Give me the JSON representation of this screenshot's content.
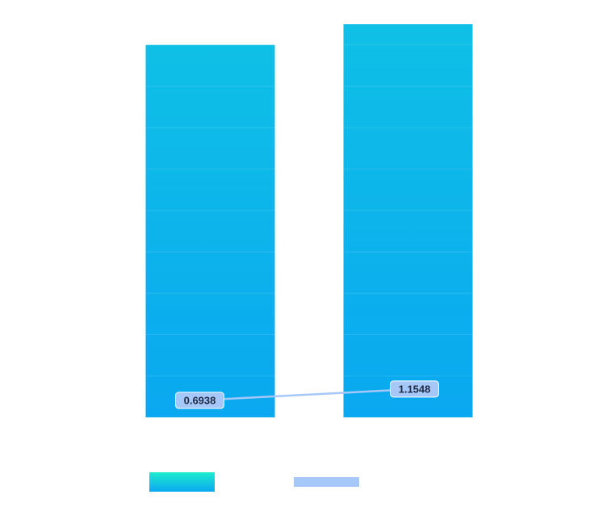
{
  "chart_data": {
    "type": "bar",
    "categories": [
      null,
      null
    ],
    "series": [
      {
        "type": "bar",
        "color": "#0bb4ec",
        "values": [
          9.0,
          9.5
        ]
      },
      {
        "type": "line",
        "axis": "y2",
        "color": "#a6c8f8",
        "values": [
          0.6938,
          1.1548
        ]
      }
    ],
    "ylim": [
      0,
      9.5
    ],
    "yticks": [
      0,
      1,
      2,
      3,
      4,
      5,
      6,
      7,
      8,
      9
    ],
    "y2lim": [
      0,
      16
    ],
    "grid": true
  }
}
